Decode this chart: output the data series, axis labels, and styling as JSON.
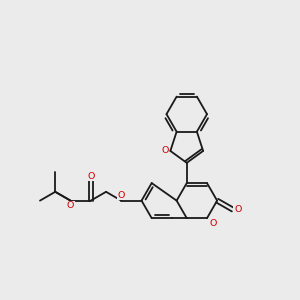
{
  "bg_color": "#ebebeb",
  "bond_color": "#1a1a1a",
  "oxygen_color": "#cc0000",
  "lw": 1.3,
  "figsize": [
    3.0,
    3.0
  ],
  "dpi": 100,
  "xlim": [
    0.5,
    8.5
  ],
  "ylim": [
    1.0,
    8.5
  ]
}
